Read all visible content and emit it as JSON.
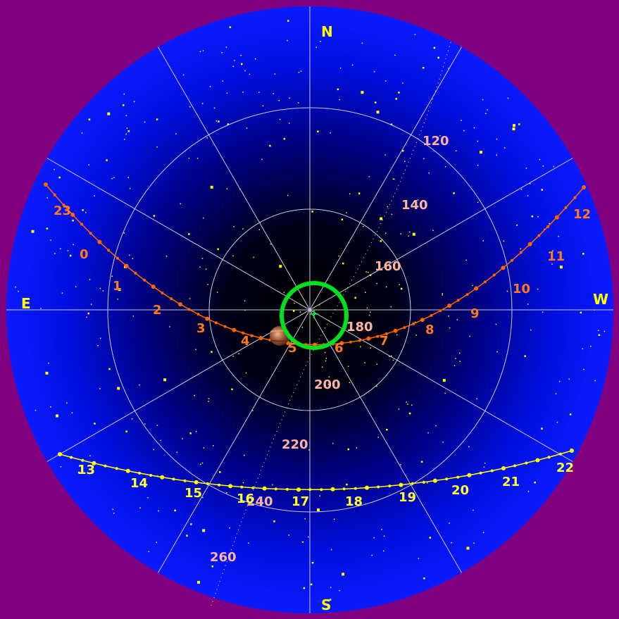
{
  "colors": {
    "border": "#800080",
    "sky_center": "#000000",
    "sky_mid": "#000030",
    "sky_edge": "#0000ff",
    "grid": "#c8c8dc",
    "stars": "#ffff00",
    "ecliptic": "#ff6600",
    "ecliptic_labels": "#ff7a1a",
    "equator": "#ffff00",
    "equator_labels": "#ffff33",
    "galactic_labels": "#ffb4a0",
    "compass": "#ffff00",
    "zenith_marker": "#00e020",
    "planet": "#a05a30"
  },
  "compass": {
    "north": "N",
    "south": "S",
    "east": "E",
    "west": "W"
  },
  "ecliptic_hour_labels": [
    "23",
    "0",
    "1",
    "2",
    "3",
    "4",
    "5",
    "6",
    "7",
    "8",
    "9",
    "10",
    "11",
    "12"
  ],
  "equator_hour_labels": [
    "13",
    "14",
    "15",
    "16",
    "17",
    "18",
    "19",
    "20",
    "21",
    "22"
  ],
  "galactic_labels": [
    "120",
    "140",
    "160",
    "180",
    "200",
    "220",
    "240",
    "260"
  ],
  "marker": {
    "type": "zenith-circle",
    "icon": "ring-icon"
  },
  "planet": {
    "icon": "planet-icon"
  }
}
